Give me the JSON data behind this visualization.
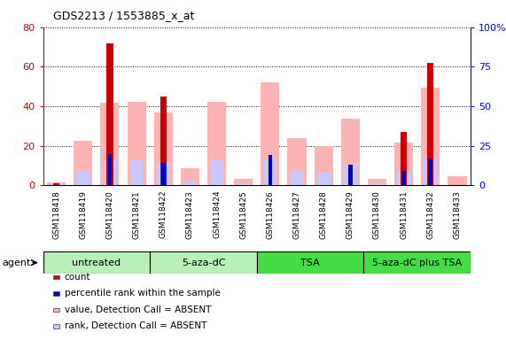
{
  "title": "GDS2213 / 1553885_x_at",
  "samples": [
    "GSM118418",
    "GSM118419",
    "GSM118420",
    "GSM118421",
    "GSM118422",
    "GSM118423",
    "GSM118424",
    "GSM118425",
    "GSM118426",
    "GSM118427",
    "GSM118428",
    "GSM118429",
    "GSM118430",
    "GSM118431",
    "GSM118432",
    "GSM118433"
  ],
  "count_values": [
    1,
    0,
    72,
    0,
    45,
    0,
    0,
    0,
    0,
    0,
    0,
    0,
    0,
    27,
    62,
    0
  ],
  "rank_values": [
    0,
    0,
    20,
    0,
    14,
    0,
    0,
    0,
    19,
    0,
    0,
    13,
    0,
    9,
    17,
    0
  ],
  "absent_value_values": [
    2,
    28,
    52,
    53,
    46,
    11,
    53,
    4,
    65,
    30,
    25,
    42,
    4,
    27,
    62,
    6
  ],
  "absent_rank_values": [
    1,
    9,
    16,
    16,
    14,
    3,
    16,
    1,
    16,
    9,
    8,
    13,
    1,
    9,
    17,
    0
  ],
  "count_color": "#cc0000",
  "rank_color": "#0000cc",
  "absent_value_color": "#ffb3b3",
  "absent_rank_color": "#c8c8ff",
  "groups": [
    {
      "label": "untreated",
      "start": 0,
      "end": 4,
      "color": "#b8f0b8"
    },
    {
      "label": "5-aza-dC",
      "start": 4,
      "end": 8,
      "color": "#b8f0b8"
    },
    {
      "label": "TSA",
      "start": 8,
      "end": 12,
      "color": "#44dd44"
    },
    {
      "label": "5-aza-dC plus TSA",
      "start": 12,
      "end": 16,
      "color": "#44dd44"
    }
  ],
  "ylim_left": [
    0,
    80
  ],
  "ylim_right": [
    0,
    100
  ],
  "yticks_left": [
    0,
    20,
    40,
    60,
    80
  ],
  "yticks_right": [
    0,
    25,
    50,
    75,
    100
  ],
  "ytick_labels_left": [
    "0",
    "20",
    "40",
    "60",
    "80"
  ],
  "ytick_labels_right": [
    "0",
    "25",
    "50",
    "75",
    "100%"
  ],
  "bar_width": 0.7,
  "background_color": "#ffffff",
  "plot_bg_color": "#ffffff",
  "xlabel_bg_color": "#d8d8d8",
  "agent_label": "agent",
  "legend_items": [
    {
      "color": "#cc0000",
      "label": "count"
    },
    {
      "color": "#0000cc",
      "label": "percentile rank within the sample"
    },
    {
      "color": "#ffb3b3",
      "label": "value, Detection Call = ABSENT"
    },
    {
      "color": "#c8c8ff",
      "label": "rank, Detection Call = ABSENT"
    }
  ]
}
